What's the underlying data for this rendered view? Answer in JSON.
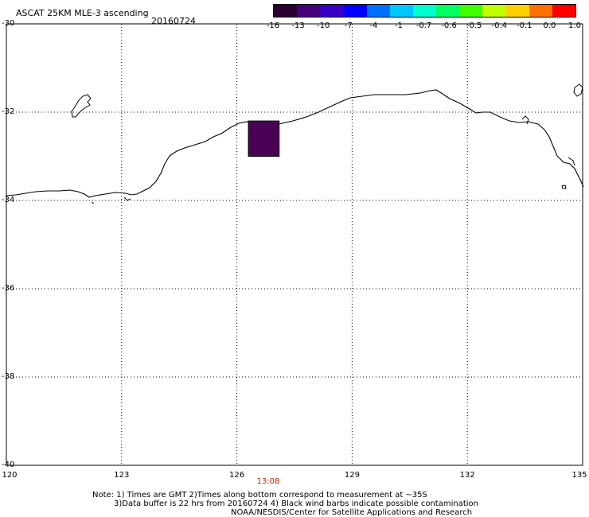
{
  "title": {
    "product": "ASCAT 25KM MLE-3 ascending",
    "date": "20160724"
  },
  "colorbar": {
    "labels": [
      "-16",
      "-13",
      "-10",
      "-7",
      "-4",
      "-1",
      "-0.7",
      "-0.6",
      "-0.5",
      "-0.4",
      "-0.1",
      "0.0",
      "1.0"
    ],
    "colors": [
      "#2a0030",
      "#46007a",
      "#3a00c8",
      "#0000ff",
      "#0070ff",
      "#00c8ff",
      "#00ffd0",
      "#00ff60",
      "#40ff00",
      "#c0ff00",
      "#ffd000",
      "#ff7000",
      "#ff0000"
    ]
  },
  "map": {
    "lat_labels": [
      "-30",
      "-32",
      "-34",
      "-36",
      "-38",
      "-40"
    ],
    "lon_labels": [
      "120",
      "123",
      "126",
      "129",
      "132",
      "135"
    ],
    "lat_range": [
      -40,
      -30
    ],
    "lon_range": [
      120,
      135
    ],
    "time_label": "13:08",
    "measurement_cell": {
      "lon": [
        126.3,
        127.1
      ],
      "lat": [
        -33.0,
        -32.2
      ],
      "color": "#4a0055"
    }
  },
  "notes": {
    "line1": "Note: 1) Times are GMT 2)Times along bottom correspond to measurement at ~35S",
    "line2": "3)Data buffer is 22 hrs from 20160724 4) Black wind barbs indicate possible contamination",
    "line3": "NOAA/NESDIS/Center for Satellite Applications and Research"
  }
}
